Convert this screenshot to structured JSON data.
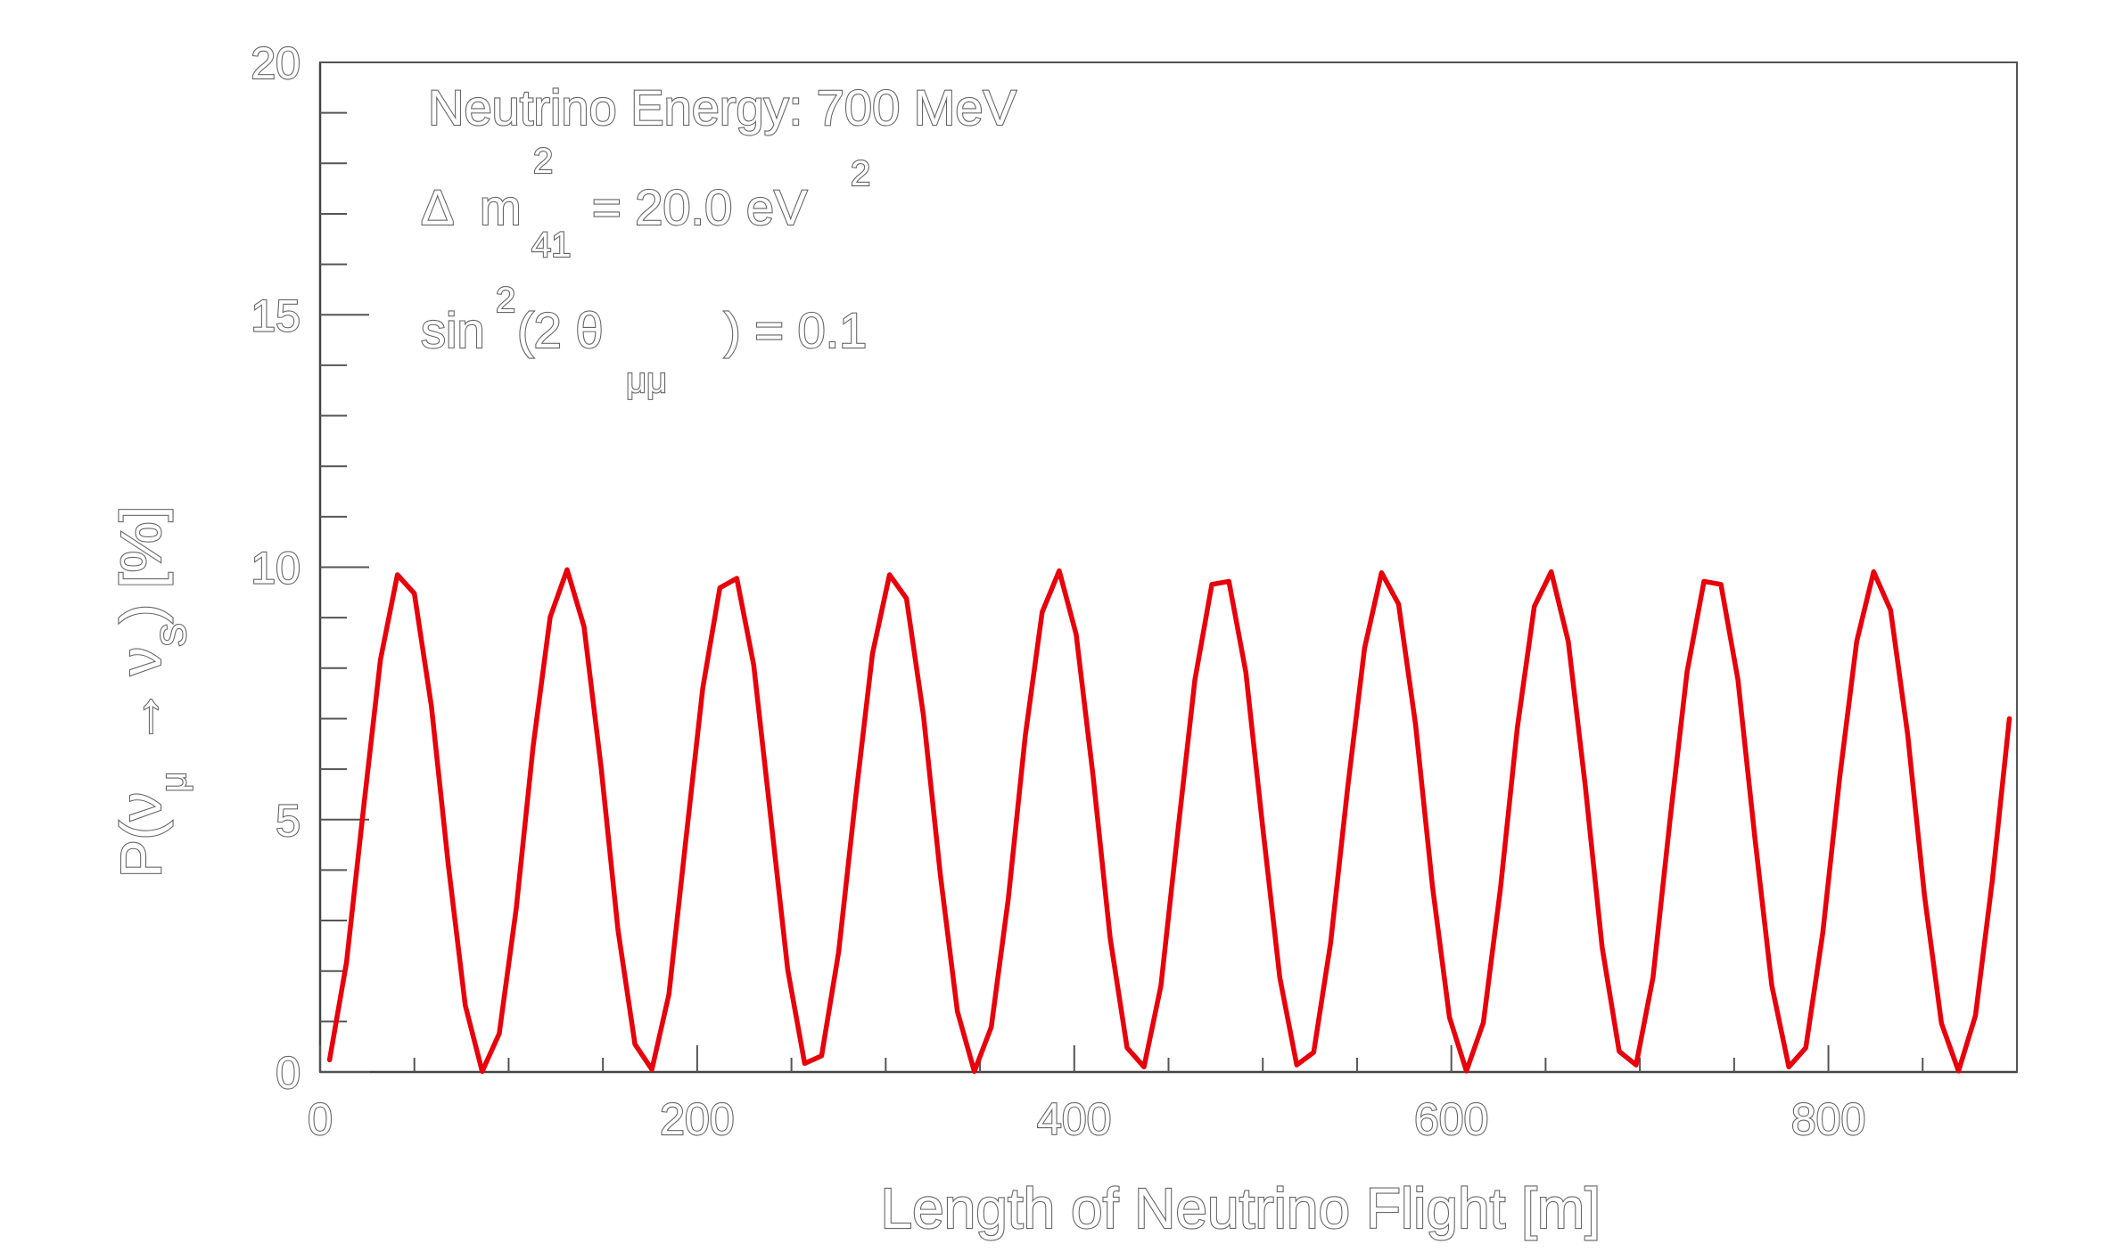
{
  "chart_data": {
    "type": "line",
    "title": "",
    "xlabel": "Length of Neutrino Flight [m]",
    "ylabel": {
      "prefix": "P(",
      "nu1": "ν",
      "sub1": "μ",
      "arrow": "→",
      "nu2": "ν",
      "sub2": "S",
      "suffix": ") [%]"
    },
    "xlim": [
      0,
      900
    ],
    "ylim": [
      0,
      20
    ],
    "x_ticks": [
      0,
      200,
      400,
      600,
      800
    ],
    "y_ticks": [
      0,
      5,
      10,
      15,
      20
    ],
    "grid": false,
    "line_color": "#e8000b",
    "annotations": {
      "energy": "Neutrino Energy:  700 MeV",
      "dm2": {
        "delta": "Δ",
        "m": "m",
        "sup": "2",
        "sub": "41",
        "rest": "= 20.0 eV",
        "rest_sup": "2"
      },
      "mixing": {
        "sin": "sin",
        "sup": "2",
        "open": "(2 θ",
        "sub": "μμ",
        "close": ") = 0.1"
      }
    },
    "series": [
      {
        "x": [
          5,
          14,
          23,
          32,
          41,
          50,
          59,
          68,
          77,
          86,
          95,
          104,
          113,
          122,
          131,
          140,
          149,
          158,
          167,
          176,
          185,
          194,
          203,
          212,
          221,
          230,
          239,
          248,
          257,
          266,
          275,
          284,
          293,
          302,
          311,
          320,
          329,
          338,
          347,
          356,
          365,
          374,
          383,
          392,
          401,
          410,
          419,
          428,
          437,
          446,
          455,
          464,
          473,
          482,
          491,
          500,
          509,
          518,
          527,
          536,
          545,
          554,
          563,
          572,
          581,
          590,
          599,
          608,
          617,
          626,
          635,
          644,
          653,
          662,
          671,
          680,
          689,
          698,
          707,
          716,
          725,
          734,
          743,
          752,
          761,
          770,
          779,
          788,
          797,
          806,
          815,
          824,
          833,
          842,
          851,
          860,
          869,
          878,
          887,
          896
        ],
        "y": [
          0.24,
          2.17,
          5.21,
          8.17,
          9.85,
          9.48,
          7.25,
          4.1,
          1.32,
          0.01,
          0.76,
          3.23,
          6.45,
          9.01,
          9.95,
          8.82,
          6.04,
          2.81,
          0.55,
          0.05,
          1.54,
          4.6,
          7.61,
          9.59,
          9.78,
          8.06,
          5.04,
          2.03,
          0.17,
          0.32,
          2.37,
          5.42,
          8.29,
          9.85,
          9.38,
          7.07,
          3.89,
          1.2,
          0.01,
          0.89,
          3.43,
          6.65,
          9.11,
          9.93,
          8.67,
          5.86,
          2.66,
          0.48,
          0.1,
          1.71,
          4.79,
          7.77,
          9.66,
          9.72,
          7.92,
          4.84,
          1.87,
          0.14,
          0.39,
          2.56,
          5.63,
          8.4,
          9.89,
          9.27,
          6.89,
          3.68,
          1.08,
          0.02,
          0.98,
          3.61,
          6.82,
          9.22,
          9.91,
          8.53,
          5.68,
          2.47,
          0.41,
          0.14,
          1.88,
          4.99,
          7.92,
          9.72,
          9.66,
          7.77,
          4.64,
          1.71,
          0.1,
          0.48,
          2.75,
          5.83,
          8.53,
          9.91,
          9.15,
          6.69,
          3.48,
          0.96,
          0.02,
          1.12,
          3.81,
          7.0
        ]
      }
    ]
  }
}
